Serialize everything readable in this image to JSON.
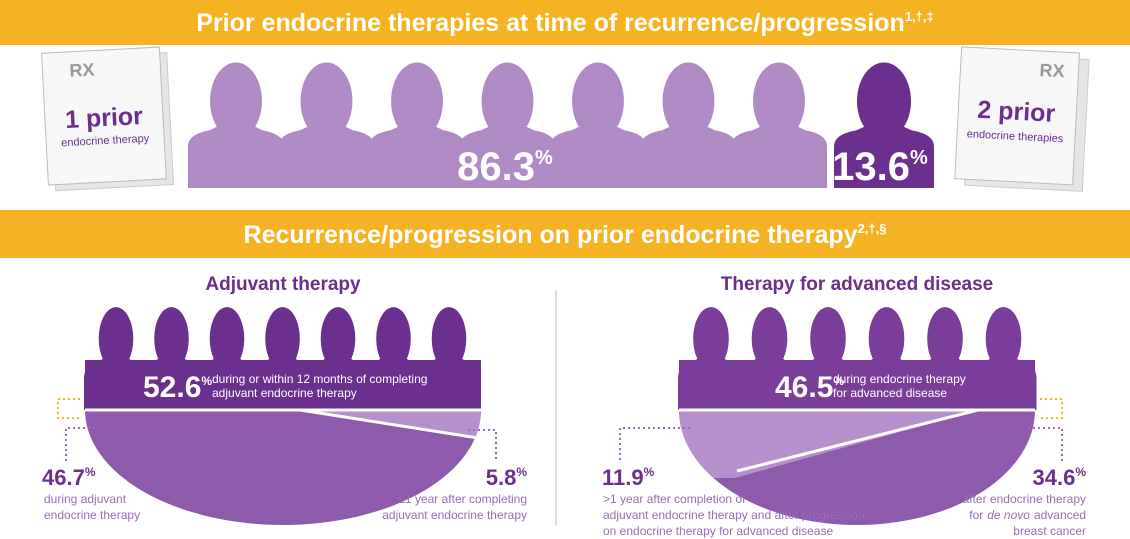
{
  "top": {
    "title": "Prior endocrine therapies at time of recurrence/progression",
    "title_sup": "1,†,‡",
    "left_card": {
      "rx": "RX",
      "big": "1 prior",
      "small": "endocrine therapy"
    },
    "right_card": {
      "rx": "RX",
      "big": "2 prior",
      "small": "endocrine therapies"
    },
    "values": [
      {
        "value": 86.3,
        "unit": "%"
      },
      {
        "value": 13.6,
        "unit": "%"
      }
    ]
  },
  "middle": {
    "title": "Recurrence/progression on prior endocrine therapy",
    "title_sup": "2,†,§"
  },
  "adjuvant": {
    "heading": "Adjuvant therapy",
    "main": {
      "value": 52.6,
      "unit": "%",
      "text": [
        "during or within 12 months of completing",
        "adjuvant endocrine therapy"
      ]
    },
    "left": {
      "value": 46.7,
      "unit": "%",
      "text": [
        "during adjuvant",
        "endocrine therapy"
      ]
    },
    "right": {
      "value": 5.8,
      "unit": "%",
      "text": [
        "≤1 year after completing",
        "adjuvant endocrine therapy"
      ]
    }
  },
  "advanced": {
    "heading": "Therapy for advanced disease",
    "main": {
      "value": 46.5,
      "unit": "%",
      "text": [
        "during endocrine therapy",
        "for advanced disease"
      ]
    },
    "left": {
      "value": 11.9,
      "unit": "%",
      "text": [
        ">1 year after completion of",
        "adjuvant endocrine therapy and after progression",
        "on endocrine therapy for advanced disease"
      ]
    },
    "right": {
      "value": 34.6,
      "unit": "%",
      "text": [
        "after endocrine therapy",
        {
          "pre": "for",
          "italic": "de novo",
          "post": "advanced"
        },
        "breast cancer"
      ]
    }
  }
}
